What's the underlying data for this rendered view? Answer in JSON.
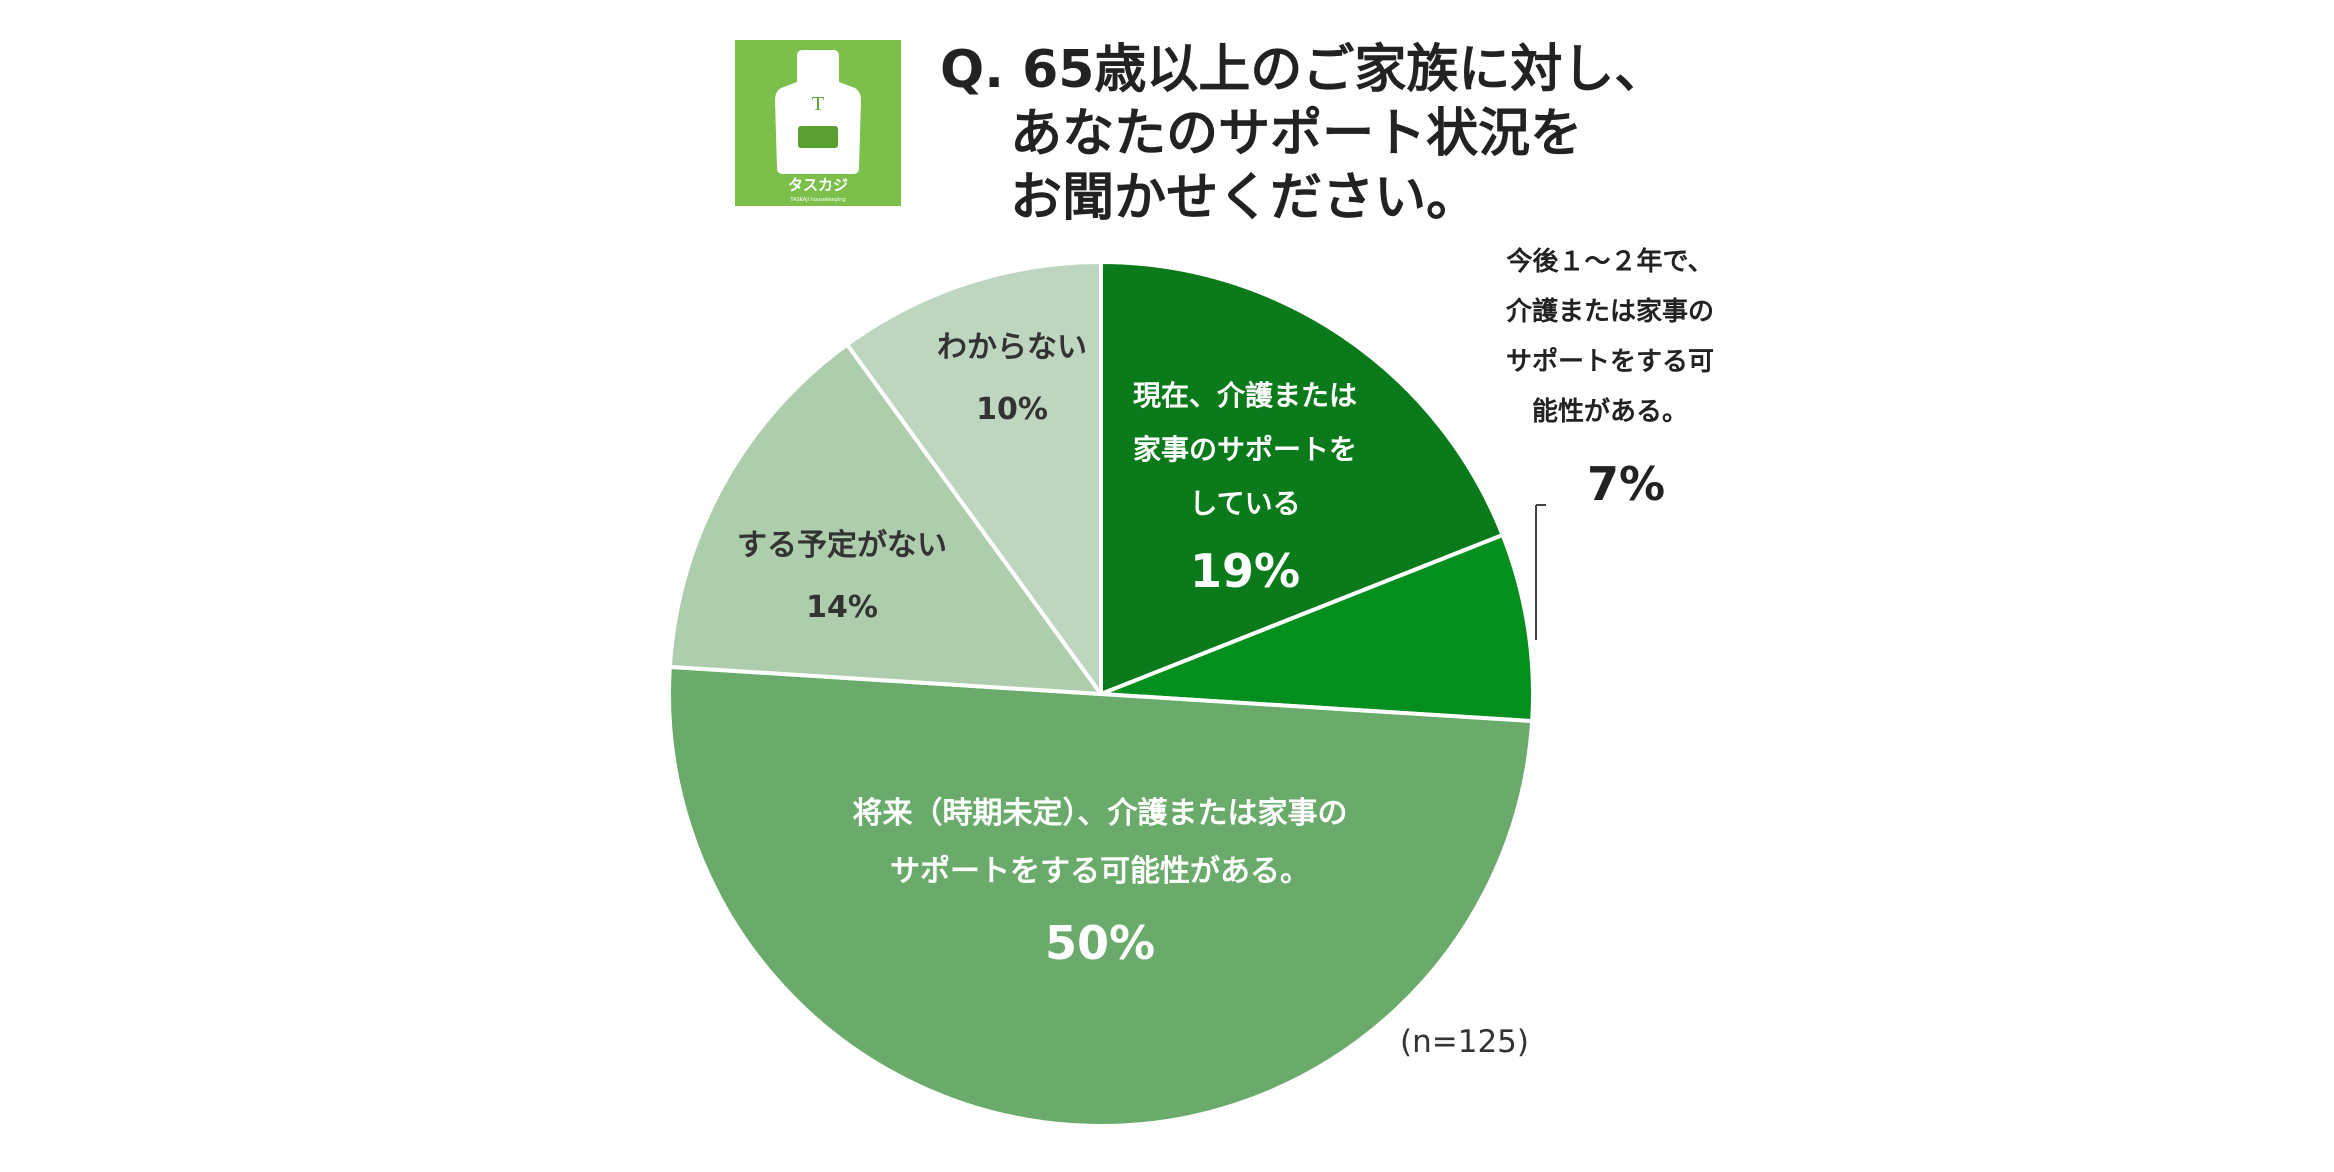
{
  "question": "Q. 65歳以上のご家族に対し、\n　 あなたのサポート状況を\n　 お聞かせください。",
  "logo": {
    "text": "タスカジ",
    "letter": "T",
    "tagline": "TASKAJI housekeeping",
    "color": "#7cc04b"
  },
  "chart_data": {
    "type": "pie",
    "start_angle_deg": 0,
    "direction": "clockwise",
    "slices": [
      {
        "label": "現在、介護または\n家事のサポートを\nしている",
        "value": 19,
        "value_label": "19%",
        "color": "#0b7a1a"
      },
      {
        "label": "今後１～２年で、\n介護または家事の\nサポートをする可\n能性がある。",
        "value": 7,
        "value_label": "7%",
        "color": "#038f1e"
      },
      {
        "label": "将来（時期未定）、介護または家事の\nサポートをする可能性がある。",
        "value": 50,
        "value_label": "50%",
        "color": "#6aab6c"
      },
      {
        "label": "する予定がない",
        "value": 14,
        "value_label": "14%",
        "color": "#aecdac"
      },
      {
        "label": "わからない",
        "value": 10,
        "value_label": "10%",
        "color": "#bed6bf"
      }
    ],
    "sample_size": "(n=125)"
  }
}
